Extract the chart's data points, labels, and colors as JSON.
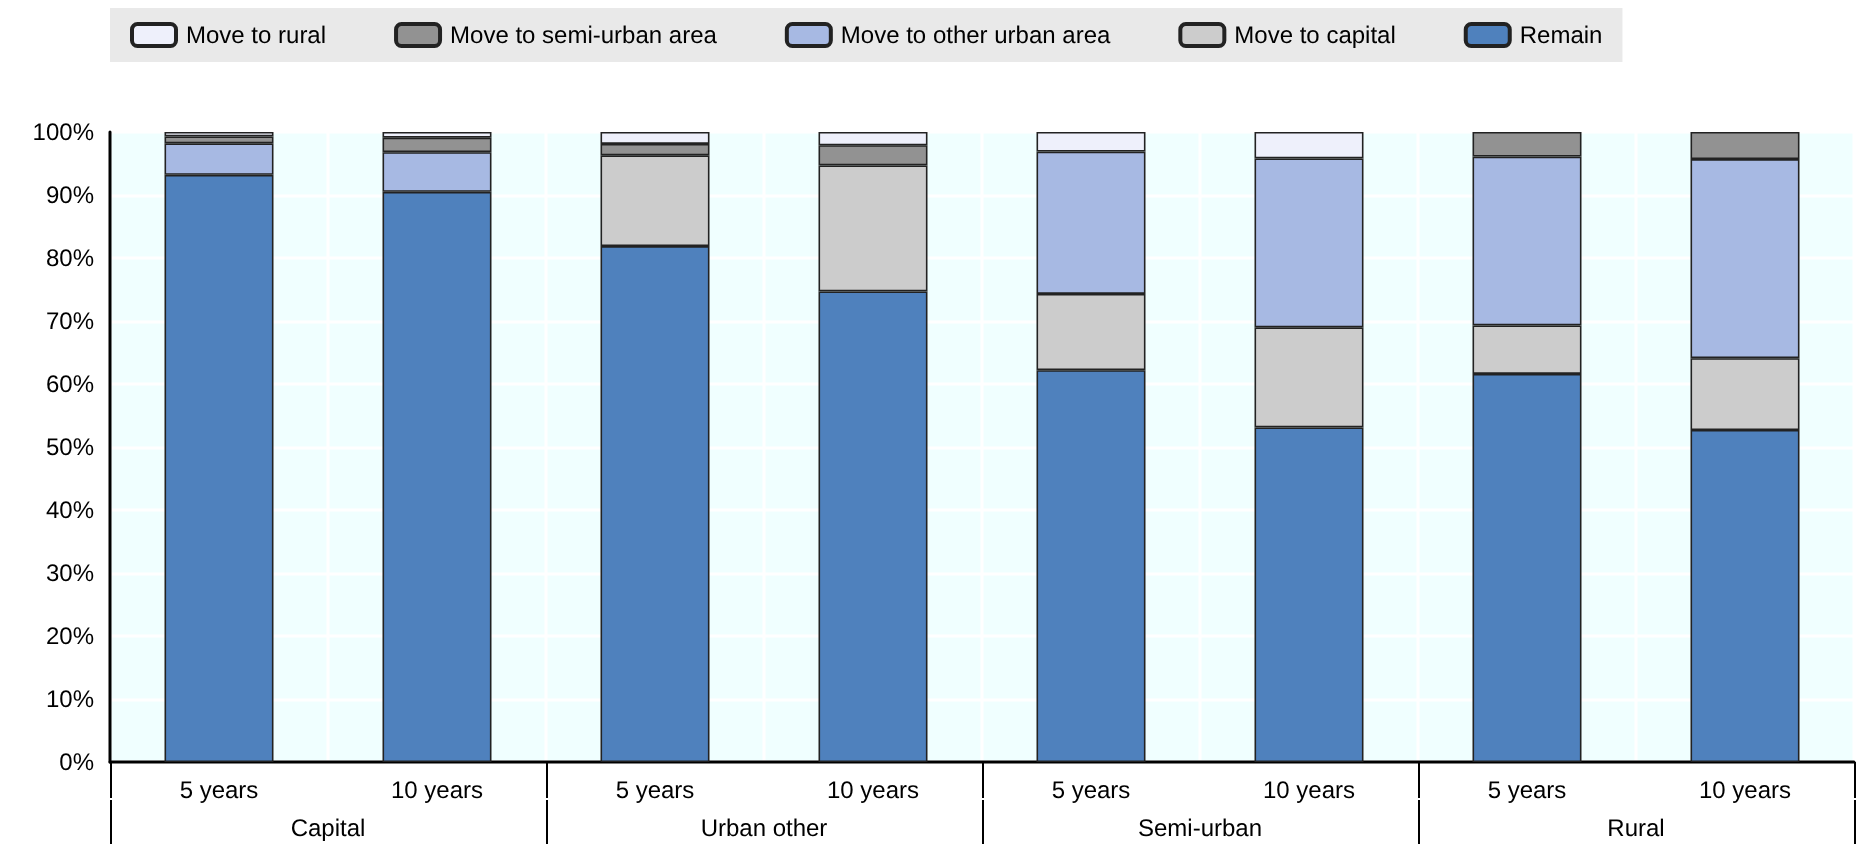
{
  "chart_data": {
    "type": "bar",
    "stacked": true,
    "categories": [
      "5 years",
      "10 years",
      "5 years",
      "10 years",
      "5 years",
      "10 years",
      "5 years",
      "10 years"
    ],
    "annotations": [
      "Capital",
      "Urban other",
      "Semi-urban",
      "Rural"
    ],
    "series": [
      {
        "name": "Remain",
        "color": "#4f81bd",
        "values": [
          93.2,
          90.5,
          81.9,
          74.7,
          62.2,
          53.1,
          61.6,
          52.7
        ]
      },
      {
        "name": "Move to capital",
        "color": "#cccccc",
        "values": [
          0,
          0,
          14.4,
          20,
          12.1,
          15.9,
          7.7,
          11.4
        ]
      },
      {
        "name": "Move to other urban area",
        "color": "#a7b9e3",
        "values": [
          5,
          6.3,
          0,
          0,
          22.6,
          26.8,
          26.8,
          31.6
        ]
      },
      {
        "name": "Move to semi-urban area",
        "color": "#929292",
        "values": [
          1.1,
          2.3,
          1.8,
          3.2,
          0,
          0,
          3.9,
          4.3
        ]
      },
      {
        "name": "Move to rural",
        "color": "#eef0fb",
        "values": [
          0.7,
          0.9,
          1.9,
          2.1,
          3.1,
          4.2,
          0,
          0
        ]
      }
    ],
    "ylim": [
      0,
      100
    ],
    "yticks": [
      {
        "value": 0,
        "label": "0%"
      },
      {
        "value": 10,
        "label": "10%"
      },
      {
        "value": 20,
        "label": "20%"
      },
      {
        "value": 30,
        "label": "30%"
      },
      {
        "value": 40,
        "label": "40%"
      },
      {
        "value": 50,
        "label": "50%"
      },
      {
        "value": 60,
        "label": "60%"
      },
      {
        "value": 70,
        "label": "70%"
      },
      {
        "value": 80,
        "label": "80%"
      },
      {
        "value": 90,
        "label": "90%"
      },
      {
        "value": 100,
        "label": "100%"
      }
    ],
    "grid": true,
    "legend": "top"
  }
}
